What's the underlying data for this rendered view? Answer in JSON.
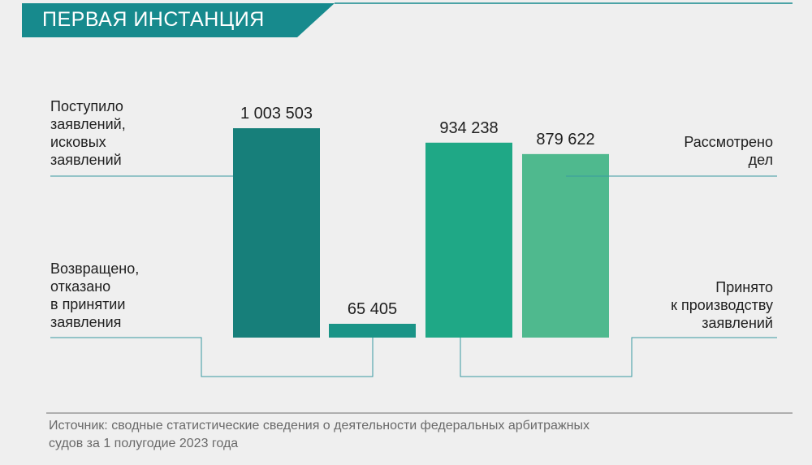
{
  "header": {
    "title": "ПЕРВАЯ ИНСТАНЦИЯ"
  },
  "labels": {
    "received": "Поступило\nзаявлений,\nисковых\nзаявлений",
    "returned": "Возвращено,\nотказано\nв принятии\nзаявления",
    "considered": "Рассмотрено\nдел",
    "accepted": "Принято\nк производству\nзаявлений"
  },
  "chart_data": {
    "type": "bar",
    "title": "",
    "categories": [
      "Поступило заявлений, исковых заявлений",
      "Возвращено, отказано в принятии заявления",
      "Принято к производству заявлений",
      "Рассмотрено дел"
    ],
    "values": [
      1003503,
      65405,
      934238,
      879622
    ],
    "value_labels": [
      "1 003 503",
      "65 405",
      "934 238",
      "879 622"
    ],
    "colors": [
      "#177f7a",
      "#1a9487",
      "#1fa886",
      "#4fb98e"
    ],
    "ylim": [
      0,
      1003503
    ],
    "grid": false,
    "legend": "none"
  },
  "colors": {
    "banner": "#178a8d",
    "banner_line": "#178a8d",
    "connector": "#3a9aa0",
    "separator": "#999999",
    "background": "#efefef"
  },
  "source": "Источник: сводные статистические сведения о деятельности федеральных арбитражных\n            судов за 1 полугодие 2023 года"
}
